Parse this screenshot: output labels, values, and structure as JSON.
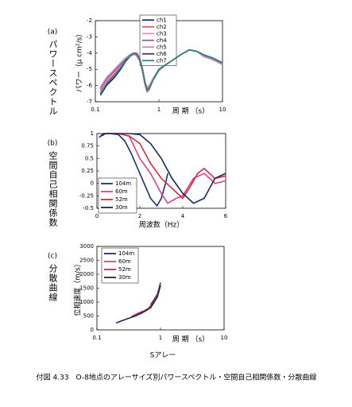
{
  "chart_data": [
    {
      "type": "line",
      "panel": "(a)",
      "side_label": "パワースペクトル",
      "ylabel": "パワー（μ cm²/s）",
      "xlabel": "周 期 （s）",
      "xscale": "log",
      "xlim": [
        0.1,
        10
      ],
      "xticks": [
        0.1,
        1,
        10
      ],
      "ylim": [
        -7,
        -2
      ],
      "yticks": [
        -2,
        -3,
        -4,
        -5,
        -6,
        -7
      ],
      "legend": "upper right",
      "x": [
        0.12,
        0.15,
        0.2,
        0.25,
        0.3,
        0.35,
        0.4,
        0.45,
        0.5,
        0.55,
        0.6,
        0.65,
        0.7,
        0.8,
        1,
        1.3,
        1.7,
        2.2,
        3,
        4,
        5,
        7,
        10
      ],
      "series": [
        {
          "name": "ch1",
          "color": "#1b2a6b",
          "values": [
            -6.6,
            -6.0,
            -5.5,
            -5.0,
            -4.5,
            -4.2,
            -4.0,
            -4.1,
            -4.4,
            -5.0,
            -5.8,
            -6.3,
            -6.2,
            -5.7,
            -5.0,
            -4.7,
            -4.4,
            -4.1,
            -3.8,
            -3.9,
            -4.1,
            -4.3,
            -4.6
          ]
        },
        {
          "name": "ch2",
          "color": "#e0508a",
          "values": [
            -6.3,
            -5.8,
            -5.3,
            -4.9,
            -4.4,
            -4.1,
            -4.0,
            -4.0,
            -4.3,
            -4.9,
            -5.7,
            -6.2,
            -6.1,
            -5.6,
            -5.0,
            -4.7,
            -4.4,
            -4.1,
            -3.8,
            -3.9,
            -4.2,
            -4.4,
            -4.7
          ]
        },
        {
          "name": "ch3",
          "color": "#f08cc0",
          "values": [
            -6.4,
            -5.7,
            -5.2,
            -4.8,
            -4.4,
            -4.2,
            -4.1,
            -4.1,
            -4.4,
            -5.0,
            -5.7,
            -6.1,
            -6.0,
            -5.6,
            -5.0,
            -4.7,
            -4.4,
            -4.1,
            -3.8,
            -3.9,
            -4.1,
            -4.3,
            -4.6
          ]
        },
        {
          "name": "ch4",
          "color": "#a05a9a",
          "values": [
            -6.2,
            -5.6,
            -5.1,
            -4.7,
            -4.3,
            -4.1,
            -4.0,
            -4.1,
            -4.5,
            -5.1,
            -5.9,
            -6.3,
            -6.2,
            -5.7,
            -5.0,
            -4.7,
            -4.4,
            -4.1,
            -3.8,
            -3.9,
            -4.1,
            -4.4,
            -4.6
          ]
        },
        {
          "name": "ch5",
          "color": "#c38ac0",
          "values": [
            -6.1,
            -5.5,
            -5.0,
            -4.6,
            -4.3,
            -4.1,
            -4.0,
            -4.2,
            -4.5,
            -5.1,
            -5.9,
            -6.4,
            -6.3,
            -5.7,
            -5.1,
            -4.7,
            -4.4,
            -4.1,
            -3.8,
            -3.9,
            -4.2,
            -4.4,
            -4.7
          ]
        },
        {
          "name": "ch6",
          "color": "#5a2a60",
          "values": [
            -6.5,
            -5.9,
            -5.4,
            -4.9,
            -4.5,
            -4.2,
            -4.0,
            -4.1,
            -4.4,
            -5.0,
            -5.8,
            -6.3,
            -6.2,
            -5.7,
            -5.0,
            -4.7,
            -4.4,
            -4.1,
            -3.8,
            -3.9,
            -4.1,
            -4.3,
            -4.6
          ]
        },
        {
          "name": "ch7",
          "color": "#2a8a7a",
          "values": [
            -6.5,
            -5.9,
            -5.4,
            -4.9,
            -4.4,
            -4.2,
            -4.0,
            -4.1,
            -4.4,
            -5.0,
            -5.8,
            -6.3,
            -6.2,
            -5.7,
            -5.0,
            -4.7,
            -4.4,
            -4.1,
            -3.8,
            -3.9,
            -4.1,
            -4.3,
            -4.6
          ]
        }
      ]
    },
    {
      "type": "line",
      "panel": "(b)",
      "side_label": "空間自己相関係数",
      "xlabel": "周波数（Hz）",
      "xscale": "linear",
      "xlim": [
        0,
        6
      ],
      "xticks": [
        0,
        2,
        4,
        6
      ],
      "ylim": [
        -0.5,
        1
      ],
      "yticks": [
        1,
        0.75,
        0.5,
        0.25,
        0,
        -0.25,
        -0.5
      ],
      "legend": "lower left",
      "series": [
        {
          "name": "104m",
          "color": "#1f2f75",
          "x": [
            0.1,
            0.3,
            0.6,
            1.0,
            1.3,
            1.6,
            1.9,
            2.2,
            2.5,
            2.8,
            3.0,
            3.2,
            3.3
          ],
          "values": [
            0.92,
            1,
            1,
            0.98,
            0.85,
            0.6,
            0.3,
            0.0,
            -0.3,
            -0.45,
            -0.3,
            0.0,
            0.2
          ]
        },
        {
          "name": "60m",
          "color": "#e0408a",
          "x": [
            0.2,
            0.4,
            1.0,
            1.5,
            2.0,
            2.5,
            3.0,
            3.3,
            3.7,
            4.0,
            4.5,
            5.0,
            5.5,
            6.0
          ],
          "values": [
            0.95,
            1,
            1,
            0.95,
            0.5,
            0.2,
            -0.2,
            -0.4,
            -0.3,
            -0.25,
            0.1,
            0.2,
            0.0,
            0.05
          ]
        },
        {
          "name": "52m",
          "color": "#d8283a",
          "x": [
            0.2,
            0.4,
            1.0,
            1.5,
            2.0,
            2.5,
            3.0,
            3.5,
            4.0,
            4.3,
            4.7,
            5.0,
            5.5,
            6.0
          ],
          "values": [
            0.95,
            1,
            1,
            0.95,
            0.8,
            0.4,
            0.1,
            -0.1,
            -0.3,
            -0.1,
            0.2,
            0.3,
            0.1,
            0.15
          ]
        },
        {
          "name": "30m",
          "color": "#1a2858",
          "x": [
            0.2,
            0.4,
            1.0,
            1.5,
            2.0,
            2.5,
            3.0,
            3.5,
            4.0,
            4.5,
            5.0,
            5.5,
            6.0
          ],
          "values": [
            0.95,
            1,
            1,
            1,
            0.98,
            0.8,
            0.5,
            0.1,
            -0.2,
            -0.4,
            -0.3,
            0.1,
            0.2
          ]
        }
      ]
    },
    {
      "type": "line",
      "panel": "(c)",
      "side_label": "分散曲線",
      "ylabel": "位相速度（m/s）",
      "xlabel": "周 期 （s）",
      "xscale": "log",
      "xlim": [
        0.1,
        10
      ],
      "xticks": [
        0.1,
        1,
        10
      ],
      "ylim": [
        0,
        3000
      ],
      "yticks": [
        3000,
        2500,
        2000,
        1500,
        1000,
        500,
        0
      ],
      "legend": "upper left",
      "series": [
        {
          "name": "104m",
          "color": "#1f2f75",
          "x": [
            0.7,
            0.8,
            0.9,
            1.0
          ],
          "values": [
            900,
            1100,
            1300,
            1700
          ]
        },
        {
          "name": "60m",
          "color": "#e0408a",
          "x": [
            0.4,
            0.5,
            0.6,
            0.7,
            0.8,
            0.9,
            1.0
          ],
          "values": [
            550,
            650,
            700,
            850,
            1050,
            1250,
            1650
          ]
        },
        {
          "name": "52m",
          "color": "#d8283a",
          "x": [
            0.35,
            0.45,
            0.55,
            0.65,
            0.75,
            0.85,
            0.95
          ],
          "values": [
            480,
            600,
            680,
            780,
            950,
            1150,
            1450
          ]
        },
        {
          "name": "30m",
          "color": "#1a2858",
          "x": [
            0.2,
            0.3,
            0.4,
            0.5,
            0.6,
            0.7,
            0.8,
            0.9,
            1.0
          ],
          "values": [
            250,
            400,
            500,
            600,
            700,
            800,
            1000,
            1200,
            1600
          ]
        }
      ]
    }
  ],
  "footer_label": "Sアレー",
  "caption": "付図 4.33　O-8地点のアレーサイズ別パワースペクトル・空間自己相関係数・分散曲線"
}
